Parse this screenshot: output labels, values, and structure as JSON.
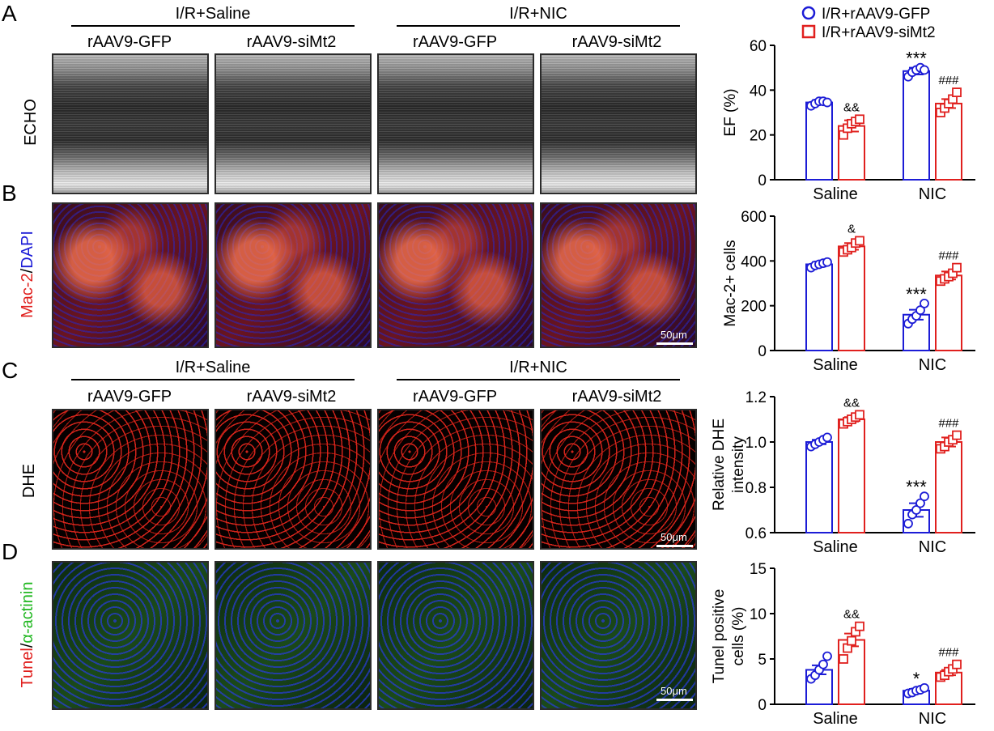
{
  "panels": {
    "A": "A",
    "B": "B",
    "C": "C",
    "D": "D"
  },
  "groups": {
    "top_saline": "I/R+Saline",
    "top_nic": "I/R+NIC",
    "mid_saline": "I/R+Saline",
    "mid_nic": "I/R+NIC"
  },
  "columns": [
    "rAAV9-GFP",
    "rAAV9-siMt2",
    "rAAV9-GFP",
    "rAAV9-siMt2"
  ],
  "row_labels": {
    "echo": "ECHO",
    "mac_part1": "Mac-2",
    "mac_sep": "/",
    "mac_part2": "DAPI",
    "dhe": "DHE",
    "tunel_part1": "Tunel",
    "tunel_sep": "/",
    "tunel_part2": "α-actinin"
  },
  "scale_bar": "50μm",
  "legend": {
    "gfp": "I/R+rAAV9-GFP",
    "simt2": "I/R+rAAV9-siMt2"
  },
  "colors": {
    "gfp": "#1c1cd6",
    "simt2": "#e0201e",
    "mac_red": "#e0201e",
    "dapi_blue": "#1c1cd6",
    "actinin_green": "#22b822"
  },
  "chart_data": [
    {
      "type": "bar",
      "ylabel": "EF (%)",
      "ylim": [
        0,
        60
      ],
      "yticks": [
        0,
        20,
        40,
        60
      ],
      "categories": [
        "Saline",
        "NIC"
      ],
      "series": [
        {
          "name": "I/R+rAAV9-GFP",
          "values": [
            34.5,
            48.5
          ],
          "errors": [
            1,
            1.5
          ],
          "points": [
            [
              33,
              34,
              35,
              35,
              34.5
            ],
            [
              46,
              48,
              49,
              50,
              49
            ]
          ]
        },
        {
          "name": "I/R+rAAV9-siMt2",
          "values": [
            24,
            34
          ],
          "errors": [
            2.5,
            2
          ],
          "points": [
            [
              20,
              23,
              25,
              26,
              27
            ],
            [
              30,
              32,
              34,
              36,
              39
            ]
          ]
        }
      ],
      "annotations": [
        {
          "category": 0,
          "series": 1,
          "text": "&&"
        },
        {
          "category": 1,
          "series": 0,
          "text": "***"
        },
        {
          "category": 1,
          "series": 1,
          "text": "###"
        }
      ]
    },
    {
      "type": "bar",
      "ylabel": "Mac-2+ cells",
      "ylim": [
        0,
        600
      ],
      "yticks": [
        0,
        200,
        400,
        600
      ],
      "categories": [
        "Saline",
        "NIC"
      ],
      "series": [
        {
          "name": "I/R+rAAV9-GFP",
          "values": [
            385,
            160
          ],
          "errors": [
            10,
            22
          ],
          "points": [
            [
              370,
              380,
              385,
              390,
              395
            ],
            [
              120,
              140,
              155,
              180,
              210
            ]
          ]
        },
        {
          "name": "I/R+rAAV9-siMt2",
          "values": [
            465,
            335
          ],
          "errors": [
            15,
            18
          ],
          "points": [
            [
              440,
              450,
              460,
              480,
              490
            ],
            [
              310,
              320,
              330,
              345,
              370
            ]
          ]
        }
      ],
      "annotations": [
        {
          "category": 0,
          "series": 1,
          "text": "&"
        },
        {
          "category": 1,
          "series": 0,
          "text": "***"
        },
        {
          "category": 1,
          "series": 1,
          "text": "###"
        }
      ]
    },
    {
      "type": "bar",
      "ylabel": "Relative DHE intensity",
      "ylim": [
        0.6,
        1.2
      ],
      "yticks": [
        0.6,
        0.8,
        1.0,
        1.2
      ],
      "categories": [
        "Saline",
        "NIC"
      ],
      "series": [
        {
          "name": "I/R+rAAV9-GFP",
          "values": [
            1.0,
            0.7
          ],
          "errors": [
            0.01,
            0.03
          ],
          "points": [
            [
              0.98,
              0.99,
              1.0,
              1.01,
              1.02
            ],
            [
              0.64,
              0.68,
              0.7,
              0.73,
              0.76
            ]
          ]
        },
        {
          "name": "I/R+rAAV9-siMt2",
          "values": [
            1.1,
            1.0
          ],
          "errors": [
            0.01,
            0.02
          ],
          "points": [
            [
              1.08,
              1.09,
              1.1,
              1.11,
              1.12
            ],
            [
              0.97,
              0.98,
              1.0,
              1.01,
              1.03
            ]
          ]
        }
      ],
      "annotations": [
        {
          "category": 0,
          "series": 1,
          "text": "&&"
        },
        {
          "category": 1,
          "series": 0,
          "text": "***"
        },
        {
          "category": 1,
          "series": 1,
          "text": "###"
        }
      ]
    },
    {
      "type": "bar",
      "ylabel": "Tunel positive cells (%)",
      "ylim": [
        0,
        15
      ],
      "yticks": [
        0,
        5,
        10,
        15
      ],
      "categories": [
        "Saline",
        "NIC"
      ],
      "series": [
        {
          "name": "I/R+rAAV9-GFP",
          "values": [
            3.8,
            1.5
          ],
          "errors": [
            0.5,
            0.2
          ],
          "points": [
            [
              2.8,
              3.2,
              3.8,
              4.4,
              5.3
            ],
            [
              1.2,
              1.3,
              1.5,
              1.6,
              1.8
            ]
          ]
        },
        {
          "name": "I/R+rAAV9-siMt2",
          "values": [
            7.1,
            3.5
          ],
          "errors": [
            0.7,
            0.3
          ],
          "points": [
            [
              5.0,
              6.2,
              7.0,
              8.0,
              8.6
            ],
            [
              3.0,
              3.2,
              3.6,
              3.9,
              4.4
            ]
          ]
        }
      ],
      "annotations": [
        {
          "category": 0,
          "series": 1,
          "text": "&&"
        },
        {
          "category": 1,
          "series": 0,
          "text": "*"
        },
        {
          "category": 1,
          "series": 1,
          "text": "###"
        }
      ]
    }
  ]
}
